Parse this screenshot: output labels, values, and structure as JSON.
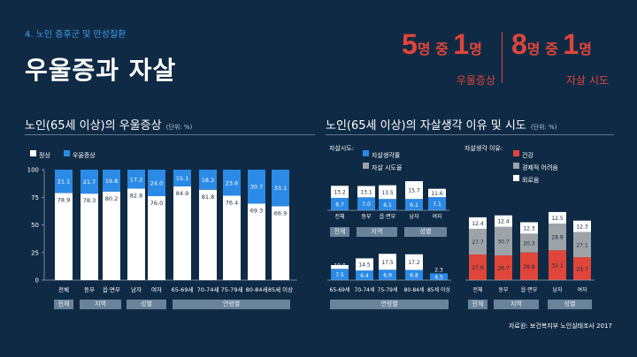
{
  "section_label": "4. 노인 증후군 및 만성질환",
  "title": "우울증과 자살",
  "highlights": [
    {
      "big1": "5",
      "txt1": "명 중 ",
      "big2": "1",
      "txt2": "명",
      "caption": "우울증상"
    },
    {
      "big1": "8",
      "txt1": "명 중 ",
      "big2": "1",
      "txt2": "명",
      "caption": "자살 시도"
    }
  ],
  "left_title": "노인(65세 이상)의 우울증상",
  "left_unit": "(단위: %)",
  "right_title": "노인(65세 이상)의 자살생각 이유 및 시도",
  "right_unit": "(단위: %)",
  "left_legend": [
    "정상",
    "우울증상"
  ],
  "right_legend_a_label": "자살시도:",
  "right_legend_a": [
    "자살생각률",
    "자살 시도율"
  ],
  "right_legend_b_label": "자살생각 이유:",
  "right_legend_b": [
    "건강",
    "경제적 어려움",
    "외로움"
  ],
  "colors": {
    "background": "#0f2a44",
    "blue": "#2b8ae6",
    "red": "#e0453a",
    "gray": "#9ea3a8",
    "white": "#ffffff",
    "group_box": "#6b8399",
    "accent": "#3ea3f0"
  },
  "chart_data": [
    {
      "type": "bar",
      "stacked": true,
      "categories": [
        "전체",
        "동부",
        "읍·면부",
        "남자",
        "여자",
        "65-69세",
        "70-74세",
        "75-79세",
        "80-84세",
        "85세 이상"
      ],
      "series": [
        {
          "name": "정상",
          "values": [
            78.9,
            78.3,
            80.2,
            82.8,
            76.0,
            84.9,
            81.8,
            76.4,
            69.3,
            66.9
          ]
        },
        {
          "name": "우울증상",
          "values": [
            21.1,
            21.7,
            19.8,
            17.2,
            24.0,
            15.1,
            18.2,
            23.6,
            30.7,
            33.1
          ]
        }
      ],
      "groups": [
        {
          "label": "전체",
          "count": 1
        },
        {
          "label": "지역",
          "count": 2
        },
        {
          "label": "성별",
          "count": 2
        },
        {
          "label": "연령별",
          "count": 5
        }
      ],
      "yticks": [
        0,
        25,
        50,
        75,
        100
      ],
      "ylim": [
        0,
        100
      ]
    },
    {
      "type": "bar",
      "categories": [
        "전체",
        "동부",
        "읍·면부",
        "남자",
        "여자"
      ],
      "series": [
        {
          "name": "자살생각률",
          "values": [
            13.2,
            13.1,
            13.5,
            15.7,
            11.6
          ]
        },
        {
          "name": "자살 시도율",
          "values": [
            6.7,
            7.0,
            6.1,
            6.1,
            7.1
          ]
        }
      ],
      "groups": [
        {
          "label": "전체",
          "count": 1
        },
        {
          "label": "지역",
          "count": 2
        },
        {
          "label": "성별",
          "count": 2
        }
      ]
    },
    {
      "type": "bar",
      "categories": [
        "65-69세",
        "70-74세",
        "75-79세",
        "80-84세",
        "85세 이상"
      ],
      "series": [
        {
          "name": "자살생각률",
          "values": [
            10.0,
            14.5,
            17.5,
            17.2,
            2.3
          ]
        },
        {
          "name": "자살 시도율",
          "values": [
            7.5,
            6.4,
            6.9,
            6.8,
            4.5
          ]
        }
      ],
      "groups": [
        {
          "label": "연령별",
          "count": 5
        }
      ]
    },
    {
      "type": "bar",
      "stacked": true,
      "categories": [
        "전체",
        "동부",
        "읍·면부",
        "남자",
        "여자"
      ],
      "series": [
        {
          "name": "건강",
          "values": [
            27.6,
            26.7,
            29.8,
            32.1,
            24.7
          ]
        },
        {
          "name": "경제적 어려움",
          "values": [
            27.7,
            30.7,
            20.3,
            28.8,
            27.1
          ]
        },
        {
          "name": "외로움",
          "values": [
            12.4,
            12.4,
            12.3,
            12.5,
            12.3
          ]
        }
      ],
      "groups": [
        {
          "label": "전체",
          "count": 1
        },
        {
          "label": "지역",
          "count": 2
        },
        {
          "label": "성별",
          "count": 2
        }
      ]
    }
  ],
  "source": "자료원: 보건복지부 노인실태조사 2017"
}
